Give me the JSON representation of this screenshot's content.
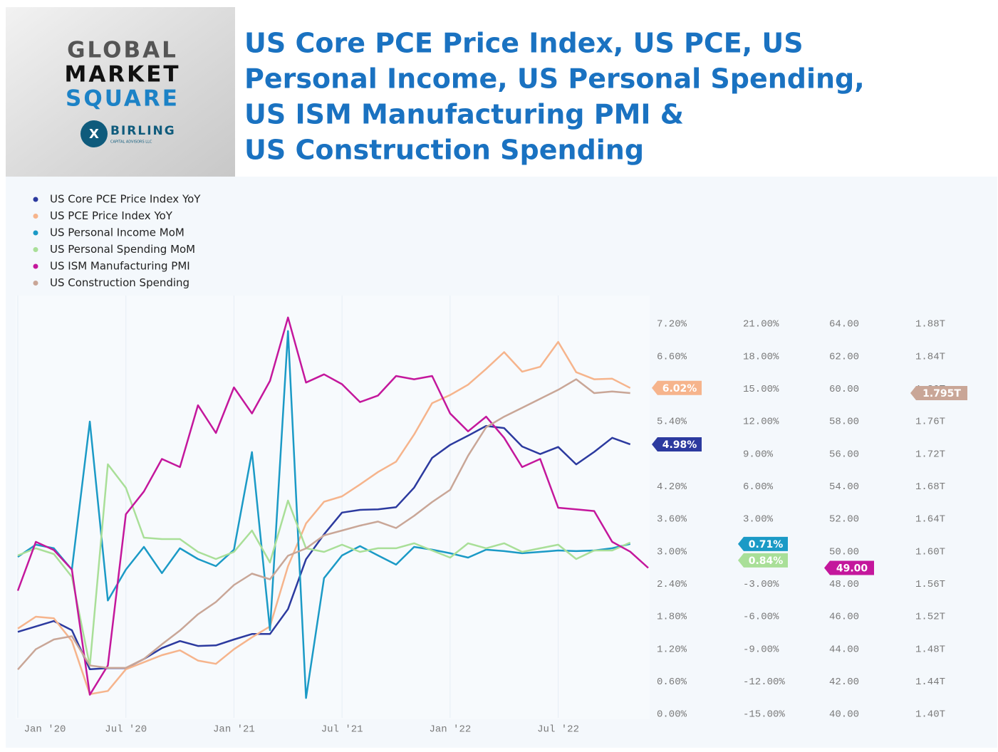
{
  "header": {
    "logo": {
      "line1": "GLOBAL",
      "line2": "MARKET",
      "line3": "SQUARE",
      "brand": "BIRLING",
      "brand_sub": "CAPITAL ADVISORS LLC"
    }
  },
  "chart_data": {
    "type": "line",
    "title_lines": [
      "US Core PCE Price Index, US PCE, US",
      "Personal Income, US Personal Spending,",
      "US ISM Manufacturing PMI &",
      "US Construction Spending"
    ],
    "categories": [
      "Jan '20",
      null,
      null,
      null,
      null,
      null,
      "Jul '20",
      null,
      null,
      null,
      null,
      null,
      "Jan '21",
      null,
      null,
      null,
      null,
      null,
      "Jul '21",
      null,
      null,
      null,
      null,
      null,
      "Jan '22",
      null,
      null,
      null,
      null,
      null,
      "Jul '22",
      null,
      null,
      null,
      null,
      null
    ],
    "ylim": [
      0,
      7.725
    ],
    "yticks": [
      {
        "value": 0,
        "label": "0.00%"
      },
      {
        "value": 0.6,
        "label": "0.60%"
      },
      {
        "value": 1.2,
        "label": "1.20%"
      },
      {
        "value": 1.8,
        "label": "1.80%"
      },
      {
        "value": 2.4,
        "label": "2.40%"
      },
      {
        "value": 3,
        "label": "3.00%"
      },
      {
        "value": 3.6,
        "label": "3.60%"
      },
      {
        "value": 4.2,
        "label": "4.20%"
      },
      {
        "value": 5.4,
        "label": "5.40%"
      },
      {
        "value": 6.6,
        "label": "6.60%"
      },
      {
        "value": 7.2,
        "label": "7.20%"
      }
    ],
    "y2lim": [
      -15,
      23.625
    ],
    "y2ticks": [
      {
        "value": -15,
        "label": "-15.00%"
      },
      {
        "value": -12,
        "label": "-12.00%"
      },
      {
        "value": -9,
        "label": "-9.00%"
      },
      {
        "value": -6,
        "label": "-6.00%"
      },
      {
        "value": -3,
        "label": "-3.00%"
      },
      {
        "value": 3,
        "label": "3.00%"
      },
      {
        "value": 6,
        "label": "6.00%"
      },
      {
        "value": 9,
        "label": "9.00%"
      },
      {
        "value": 12,
        "label": "12.00%"
      },
      {
        "value": 15,
        "label": "15.00%"
      },
      {
        "value": 18,
        "label": "18.00%"
      },
      {
        "value": 21,
        "label": "21.00%"
      }
    ],
    "y3lim": [
      40,
      65.75
    ],
    "y3ticks": [
      {
        "value": 40,
        "label": "40.00"
      },
      {
        "value": 42,
        "label": "42.00"
      },
      {
        "value": 44,
        "label": "44.00"
      },
      {
        "value": 46,
        "label": "46.00"
      },
      {
        "value": 48,
        "label": "48.00"
      },
      {
        "value": 50,
        "label": "50.00"
      },
      {
        "value": 52,
        "label": "52.00"
      },
      {
        "value": 54,
        "label": "54.00"
      },
      {
        "value": 56,
        "label": "56.00"
      },
      {
        "value": 58,
        "label": "58.00"
      },
      {
        "value": 60,
        "label": "60.00"
      },
      {
        "value": 62,
        "label": "62.00"
      },
      {
        "value": 64,
        "label": "64.00"
      }
    ],
    "y4lim": [
      1.4,
      1.915
    ],
    "y4ticks": [
      {
        "value": 1.4,
        "label": "1.40T"
      },
      {
        "value": 1.44,
        "label": "1.44T"
      },
      {
        "value": 1.48,
        "label": "1.48T"
      },
      {
        "value": 1.52,
        "label": "1.52T"
      },
      {
        "value": 1.56,
        "label": "1.56T"
      },
      {
        "value": 1.6,
        "label": "1.60T"
      },
      {
        "value": 1.64,
        "label": "1.64T"
      },
      {
        "value": 1.68,
        "label": "1.68T"
      },
      {
        "value": 1.72,
        "label": "1.72T"
      },
      {
        "value": 1.76,
        "label": "1.76T"
      },
      {
        "value": 1.8,
        "label": "1.80T"
      },
      {
        "value": 1.84,
        "label": "1.84T"
      },
      {
        "value": 1.88,
        "label": "1.88T"
      }
    ],
    "series": [
      {
        "name": "US Core PCE Price Index YoY",
        "color": "#2c3a9f",
        "axis": "y",
        "values": [
          1.52,
          1.62,
          1.72,
          1.55,
          0.83,
          0.85,
          0.85,
          1.02,
          1.22,
          1.35,
          1.26,
          1.27,
          1.38,
          1.48,
          1.48,
          1.94,
          2.86,
          3.32,
          3.72,
          3.77,
          3.78,
          3.82,
          4.18,
          4.73,
          4.97,
          5.14,
          5.32,
          5.28,
          4.94,
          4.8,
          4.93,
          4.61,
          4.84,
          5.1,
          4.98,
          null
        ],
        "value_labels": [
          null,
          null,
          null,
          null,
          null,
          null,
          null,
          null,
          null,
          null,
          null,
          null,
          null,
          null,
          null,
          null,
          null,
          null,
          null,
          null,
          null,
          null,
          null,
          null,
          null,
          null,
          null,
          null,
          null,
          null,
          null,
          null,
          null,
          null,
          "4.98%",
          null
        ]
      },
      {
        "name": "US PCE Price Index YoY",
        "color": "#f6b48c",
        "axis": "y",
        "values": [
          1.58,
          1.8,
          1.77,
          1.35,
          0.37,
          0.43,
          0.83,
          0.96,
          1.09,
          1.18,
          0.99,
          0.93,
          1.2,
          1.42,
          1.62,
          2.73,
          3.52,
          3.92,
          4.02,
          4.24,
          4.47,
          4.66,
          5.16,
          5.74,
          5.89,
          6.08,
          6.37,
          6.68,
          6.32,
          6.41,
          6.87,
          6.31,
          6.18,
          6.19,
          6.02,
          null
        ],
        "value_labels": [
          null,
          null,
          null,
          null,
          null,
          null,
          null,
          null,
          null,
          null,
          null,
          null,
          null,
          null,
          null,
          null,
          null,
          null,
          null,
          null,
          null,
          null,
          null,
          null,
          null,
          null,
          null,
          null,
          null,
          null,
          null,
          null,
          null,
          null,
          "6.02%",
          null
        ]
      },
      {
        "name": "US Personal Income MoM",
        "color": "#1b9ac6",
        "axis": "y2",
        "values": [
          -0.48,
          0.64,
          0.31,
          -1.66,
          12.0,
          -4.5,
          -1.66,
          0.44,
          -1.98,
          0.31,
          -0.68,
          -1.34,
          0.18,
          9.18,
          -7.24,
          20.35,
          -13.5,
          -2.44,
          -0.35,
          0.51,
          -0.35,
          -1.2,
          0.44,
          0.18,
          -0.15,
          -0.55,
          0.18,
          0.05,
          -0.15,
          -0.02,
          0.11,
          0.05,
          0.11,
          0.31,
          0.71,
          null
        ],
        "value_labels": [
          null,
          null,
          null,
          null,
          null,
          null,
          null,
          null,
          null,
          null,
          null,
          null,
          null,
          null,
          null,
          null,
          null,
          null,
          null,
          null,
          null,
          null,
          null,
          null,
          null,
          null,
          null,
          null,
          null,
          null,
          null,
          null,
          null,
          null,
          "0.71%",
          null
        ]
      },
      {
        "name": "US Personal Spending MoM",
        "color": "#a9df98",
        "axis": "y2",
        "values": [
          -0.35,
          0.31,
          -0.22,
          -2.32,
          -10.53,
          8.06,
          5.89,
          1.29,
          1.16,
          1.16,
          -0.02,
          -0.68,
          -0.02,
          1.95,
          -1.0,
          4.71,
          0.31,
          -0.02,
          0.64,
          -0.02,
          0.31,
          0.31,
          0.77,
          0.11,
          -0.55,
          0.77,
          0.31,
          0.77,
          -0.02,
          0.31,
          0.64,
          -0.68,
          0.11,
          0.11,
          0.84,
          null
        ],
        "value_labels": [
          null,
          null,
          null,
          null,
          null,
          null,
          null,
          null,
          null,
          null,
          null,
          null,
          null,
          null,
          null,
          null,
          null,
          null,
          null,
          null,
          null,
          null,
          null,
          null,
          null,
          null,
          null,
          null,
          null,
          null,
          null,
          null,
          null,
          null,
          "0.84%",
          null
        ]
      },
      {
        "name": "US ISM Manufacturing PMI",
        "color": "#c4179c",
        "axis": "y3",
        "values": [
          47.6,
          50.6,
          50.1,
          48.9,
          41.2,
          43.0,
          52.3,
          53.7,
          55.7,
          55.2,
          59.0,
          57.3,
          60.1,
          58.5,
          60.5,
          64.4,
          60.4,
          60.9,
          60.3,
          59.2,
          59.6,
          60.8,
          60.6,
          60.8,
          58.5,
          57.4,
          58.3,
          57.0,
          55.2,
          55.7,
          52.7,
          52.6,
          52.5,
          50.6,
          50.0,
          49
        ],
        "value_labels": [
          null,
          null,
          null,
          null,
          null,
          null,
          null,
          null,
          null,
          null,
          null,
          null,
          null,
          null,
          null,
          null,
          null,
          null,
          null,
          null,
          null,
          null,
          null,
          null,
          null,
          null,
          null,
          null,
          null,
          null,
          null,
          null,
          null,
          null,
          null,
          "49.00"
        ]
      },
      {
        "name": "US Construction Spending",
        "color": "#c9a697",
        "axis": "y4",
        "values": [
          1.455,
          1.48,
          1.492,
          1.496,
          1.46,
          1.457,
          1.457,
          1.468,
          1.486,
          1.503,
          1.523,
          1.538,
          1.559,
          1.573,
          1.566,
          1.595,
          1.604,
          1.62,
          1.626,
          1.632,
          1.637,
          1.629,
          1.644,
          1.661,
          1.676,
          1.718,
          1.753,
          1.766,
          1.777,
          1.788,
          1.799,
          1.812,
          1.795,
          1.797,
          1.795,
          null
        ],
        "value_labels": [
          null,
          null,
          null,
          null,
          null,
          null,
          null,
          null,
          null,
          null,
          null,
          null,
          null,
          null,
          null,
          null,
          null,
          null,
          null,
          null,
          null,
          null,
          null,
          null,
          null,
          null,
          null,
          null,
          null,
          null,
          null,
          null,
          null,
          null,
          "1.795T",
          null
        ]
      }
    ]
  }
}
